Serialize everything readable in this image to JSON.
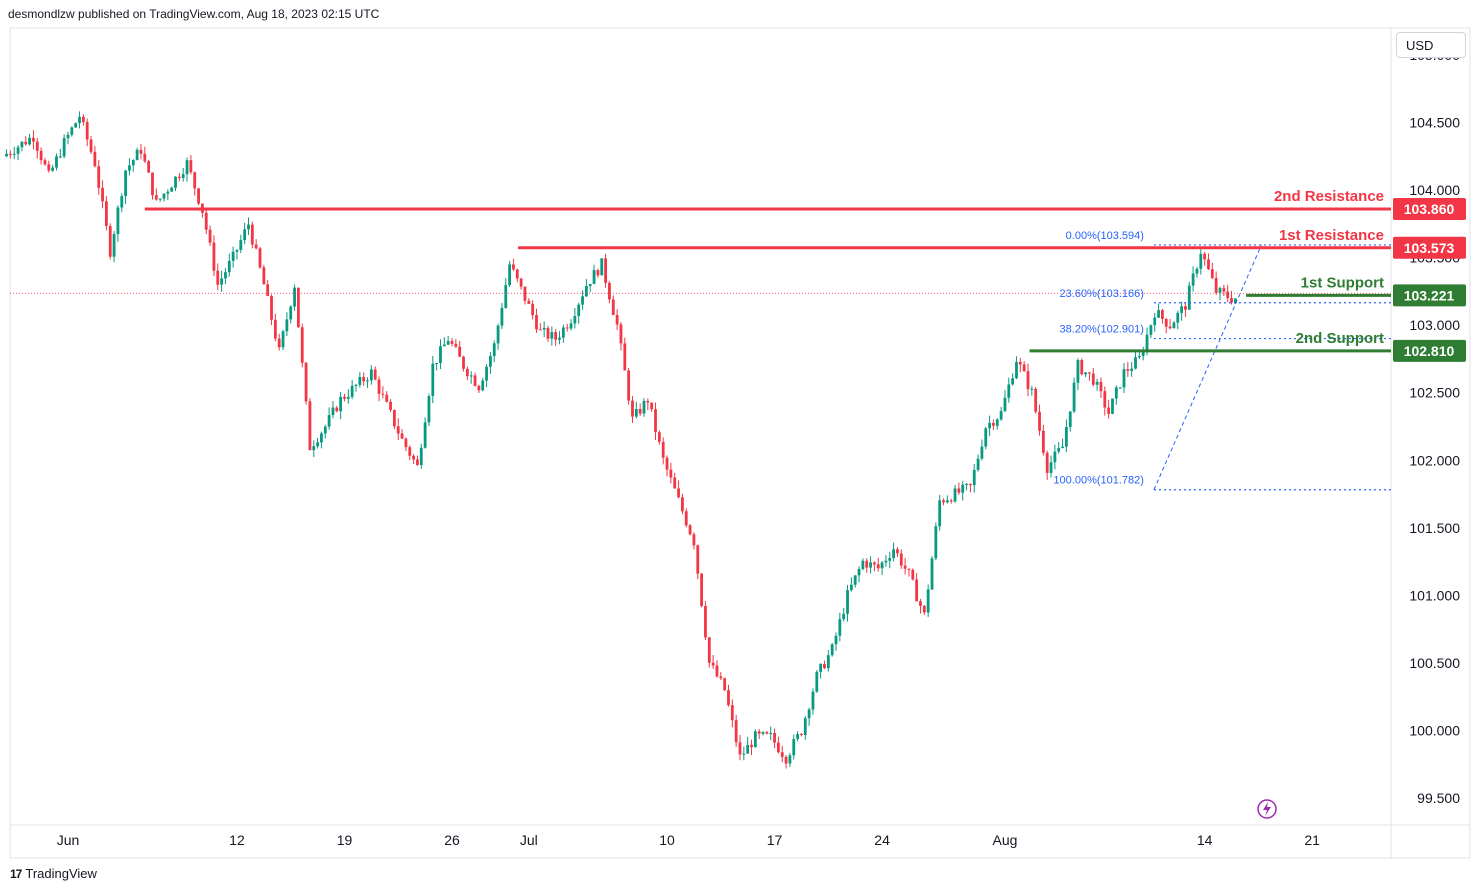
{
  "header": {
    "attribution": "desmondlzw published on TradingView.com, Aug 18, 2023 02:15 UTC"
  },
  "footer": {
    "brand": "TradingView",
    "logo_text": "17"
  },
  "currency_button": {
    "label": "USD"
  },
  "colors": {
    "up": "#089981",
    "down": "#f23645",
    "resistance": "#f23645",
    "support": "#2e7d32",
    "fib": "#2962ff"
  },
  "chart_data": {
    "type": "candlestick",
    "y_axis": {
      "min": 99.3,
      "max": 105.2,
      "ticks": [
        "105.000",
        "104.500",
        "104.000",
        "103.500",
        "103.000",
        "102.500",
        "102.000",
        "101.500",
        "101.000",
        "100.500",
        "100.000",
        "99.500"
      ]
    },
    "x_axis": {
      "ticks": [
        {
          "label": "Jun",
          "day": 0
        },
        {
          "label": "12",
          "day": 11
        },
        {
          "label": "19",
          "day": 18
        },
        {
          "label": "26",
          "day": 25
        },
        {
          "label": "Jul",
          "day": 30
        },
        {
          "label": "10",
          "day": 39
        },
        {
          "label": "17",
          "day": 46
        },
        {
          "label": "24",
          "day": 53
        },
        {
          "label": "Aug",
          "day": 61
        },
        {
          "label": "14",
          "day": 74
        },
        {
          "label": "21",
          "day": 81
        }
      ]
    },
    "levels": [
      {
        "label": "2nd Resistance",
        "price_label": "103.860",
        "price": 103.86,
        "kind": "resistance",
        "from_day": 5
      },
      {
        "label": "1st Resistance",
        "price_label": "103.573",
        "price": 103.573,
        "kind": "resistance",
        "from_day": 29.3
      },
      {
        "label": "1st Support",
        "price_label": "103.221",
        "price": 103.221,
        "kind": "support",
        "from_day": 76.7
      },
      {
        "label": "2nd Support",
        "price_label": "102.810",
        "price": 102.81,
        "kind": "support",
        "from_day": 62.6
      }
    ],
    "fibonacci": [
      {
        "label": "0.00%(103.594)",
        "price": 103.594
      },
      {
        "label": "23.60%(103.166)",
        "price": 103.166
      },
      {
        "label": "38.20%(102.901)",
        "price": 102.901
      },
      {
        "label": "100.00%(101.782)",
        "price": 101.782
      }
    ],
    "current_price": 103.221,
    "series": {
      "points": [
        [
          -4,
          104.25
        ],
        [
          -2,
          104.4
        ],
        [
          -1,
          104.1
        ],
        [
          0,
          104.35
        ],
        [
          1,
          104.55
        ],
        [
          2,
          104.2
        ],
        [
          3,
          103.55
        ],
        [
          4,
          104.15
        ],
        [
          5,
          104.3
        ],
        [
          6,
          103.9
        ],
        [
          7,
          104.05
        ],
        [
          8,
          104.2
        ],
        [
          9,
          103.85
        ],
        [
          10,
          103.3
        ],
        [
          11,
          103.5
        ],
        [
          12,
          103.75
        ],
        [
          13,
          103.3
        ],
        [
          14,
          102.8
        ],
        [
          15,
          103.3
        ],
        [
          16,
          102.1
        ],
        [
          17,
          102.25
        ],
        [
          18,
          102.45
        ],
        [
          19,
          102.55
        ],
        [
          20,
          102.65
        ],
        [
          21,
          102.4
        ],
        [
          22,
          102.15
        ],
        [
          23,
          101.95
        ],
        [
          24,
          102.7
        ],
        [
          25,
          102.9
        ],
        [
          26,
          102.7
        ],
        [
          27,
          102.55
        ],
        [
          28,
          102.85
        ],
        [
          29,
          103.45
        ],
        [
          30,
          103.2
        ],
        [
          31,
          102.95
        ],
        [
          32,
          102.9
        ],
        [
          33,
          103.05
        ],
        [
          34,
          103.3
        ],
        [
          35,
          103.45
        ],
        [
          36,
          103.0
        ],
        [
          37,
          102.3
        ],
        [
          38,
          102.45
        ],
        [
          39,
          102.0
        ],
        [
          40,
          101.7
        ],
        [
          41,
          101.4
        ],
        [
          42,
          100.5
        ],
        [
          43,
          100.3
        ],
        [
          44,
          99.8
        ],
        [
          45,
          99.95
        ],
        [
          46,
          99.95
        ],
        [
          47,
          99.8
        ],
        [
          48,
          100.0
        ],
        [
          49,
          100.4
        ],
        [
          50,
          100.6
        ],
        [
          51,
          101.0
        ],
        [
          52,
          101.25
        ],
        [
          53,
          101.2
        ],
        [
          54,
          101.35
        ],
        [
          55,
          101.15
        ],
        [
          56,
          100.85
        ],
        [
          57,
          101.7
        ],
        [
          58,
          101.75
        ],
        [
          59,
          101.8
        ],
        [
          60,
          102.25
        ],
        [
          61,
          102.35
        ],
        [
          62,
          102.75
        ],
        [
          63,
          102.5
        ],
        [
          64,
          101.95
        ],
        [
          65,
          102.1
        ],
        [
          66,
          102.7
        ],
        [
          67,
          102.6
        ],
        [
          68,
          102.35
        ],
        [
          69,
          102.65
        ],
        [
          70,
          102.75
        ],
        [
          71,
          103.1
        ],
        [
          72,
          103.0
        ],
        [
          73,
          103.15
        ],
        [
          74,
          103.55
        ],
        [
          75,
          103.25
        ],
        [
          76,
          103.2
        ]
      ]
    }
  }
}
